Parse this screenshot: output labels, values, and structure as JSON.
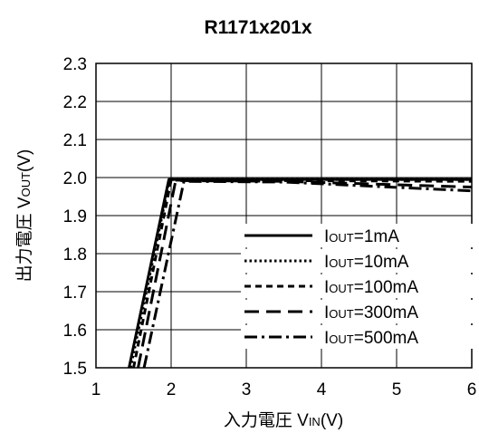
{
  "chart_data": {
    "type": "line",
    "title": "R1171x201x",
    "xlabel": {
      "main": "入力電圧 V",
      "sub": "IN",
      "unit": "(V)"
    },
    "ylabel": {
      "main": "出力電圧 V",
      "sub": "OUT",
      "unit": "(V)"
    },
    "xlim": [
      1,
      6
    ],
    "ylim": [
      1.5,
      2.3
    ],
    "xticks": [
      1,
      2,
      3,
      4,
      5,
      6
    ],
    "yticks": [
      "1.5",
      "1.6",
      "1.7",
      "1.8",
      "1.9",
      "2.0",
      "2.1",
      "2.2",
      "2.3"
    ],
    "grid": true,
    "legend_position": "right",
    "series": [
      {
        "label_main": "I",
        "label_sub": "OUT",
        "label_rest": "=1mA",
        "style": "solid",
        "x": [
          1.44,
          1.97,
          6.0
        ],
        "y": [
          1.5,
          1.995,
          1.995
        ]
      },
      {
        "label_main": "I",
        "label_sub": "OUT",
        "label_rest": "=10mA",
        "style": "dotted",
        "x": [
          1.46,
          1.98,
          6.0
        ],
        "y": [
          1.5,
          1.995,
          1.995
        ]
      },
      {
        "label_main": "I",
        "label_sub": "OUT",
        "label_rest": "=100mA",
        "style": "dashed",
        "x": [
          1.5,
          2.0,
          6.0
        ],
        "y": [
          1.5,
          1.993,
          1.99
        ]
      },
      {
        "label_main": "I",
        "label_sub": "OUT",
        "label_rest": "=300mA",
        "style": "longdash",
        "x": [
          1.56,
          2.06,
          3.5,
          6.0
        ],
        "y": [
          1.5,
          1.992,
          1.99,
          1.975
        ]
      },
      {
        "label_main": "I",
        "label_sub": "OUT",
        "label_rest": "=500mA",
        "style": "dashdot",
        "x": [
          1.64,
          2.17,
          3.5,
          6.0
        ],
        "y": [
          1.5,
          1.99,
          1.988,
          1.965
        ]
      }
    ]
  }
}
